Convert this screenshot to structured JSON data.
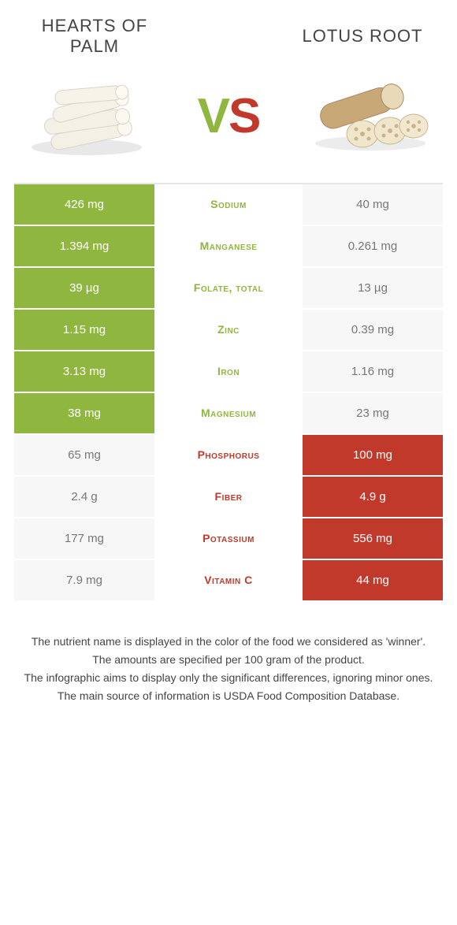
{
  "colors": {
    "left_win": "#8fb63f",
    "right_win": "#c0392b",
    "blank_bg": "#f7f7f7",
    "blank_text": "#777777"
  },
  "header": {
    "left_title": "HEARTS OF PALM",
    "right_title": "LOTUS ROOT",
    "vs_v": "V",
    "vs_s": "S"
  },
  "rows": [
    {
      "nutrient": "Sodium",
      "left": "426 mg",
      "right": "40 mg",
      "winner": "left"
    },
    {
      "nutrient": "Manganese",
      "left": "1.394 mg",
      "right": "0.261 mg",
      "winner": "left"
    },
    {
      "nutrient": "Folate, total",
      "left": "39 µg",
      "right": "13 µg",
      "winner": "left"
    },
    {
      "nutrient": "Zinc",
      "left": "1.15 mg",
      "right": "0.39 mg",
      "winner": "left"
    },
    {
      "nutrient": "Iron",
      "left": "3.13 mg",
      "right": "1.16 mg",
      "winner": "left"
    },
    {
      "nutrient": "Magnesium",
      "left": "38 mg",
      "right": "23 mg",
      "winner": "left"
    },
    {
      "nutrient": "Phosphorus",
      "left": "65 mg",
      "right": "100 mg",
      "winner": "right"
    },
    {
      "nutrient": "Fiber",
      "left": "2.4 g",
      "right": "4.9 g",
      "winner": "right"
    },
    {
      "nutrient": "Potassium",
      "left": "177 mg",
      "right": "556 mg",
      "winner": "right"
    },
    {
      "nutrient": "Vitamin C",
      "left": "7.9 mg",
      "right": "44 mg",
      "winner": "right"
    }
  ],
  "footer": {
    "line1": "The nutrient name is displayed in the color of the food we considered as 'winner'.",
    "line2": "The amounts are specified per 100 gram of the product.",
    "line3": "The infographic aims to display only the significant differences, ignoring minor ones.",
    "line4": "The main source of information is USDA Food Composition Database."
  }
}
